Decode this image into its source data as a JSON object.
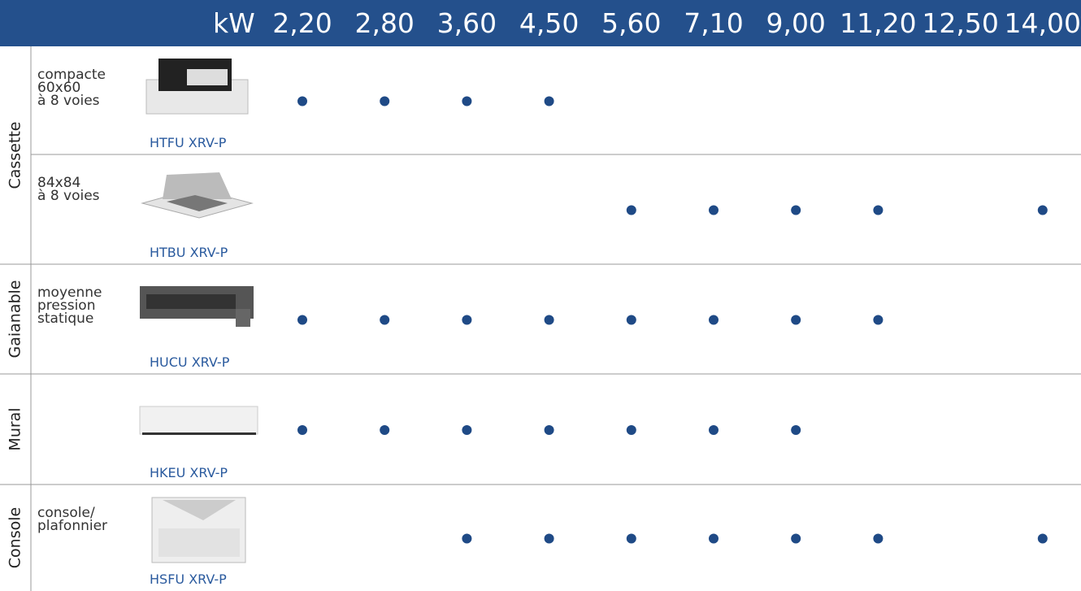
{
  "header": {
    "unit": "kW",
    "capacities": [
      "2,20",
      "2,80",
      "3,60",
      "4,50",
      "5,60",
      "7,10",
      "9,00",
      "11,20",
      "12,50",
      "14,00"
    ]
  },
  "groups": [
    {
      "category": "Cassette",
      "rows": [
        {
          "description": [
            "compacte",
            "60x60",
            "à 8 voies"
          ],
          "model": "HTFU XRV-P",
          "available": [
            true,
            true,
            true,
            true,
            false,
            false,
            false,
            false,
            false,
            false
          ]
        },
        {
          "description": [
            "84x84",
            "à 8 voies"
          ],
          "model": "HTBU XRV-P",
          "available": [
            false,
            false,
            false,
            false,
            true,
            true,
            true,
            true,
            false,
            true
          ]
        }
      ]
    },
    {
      "category": "Gaianable",
      "rows": [
        {
          "description": [
            "moyenne",
            "pression",
            "statique"
          ],
          "model": "HUCU XRV-P",
          "available": [
            true,
            true,
            true,
            true,
            true,
            true,
            true,
            true,
            false,
            false
          ]
        }
      ]
    },
    {
      "category": "Mural",
      "rows": [
        {
          "model": "HKEU XRV-P",
          "available": [
            true,
            true,
            true,
            true,
            true,
            true,
            true,
            false,
            false,
            false
          ]
        }
      ]
    },
    {
      "category": "Console",
      "rows": [
        {
          "description": [
            "console/",
            "plafonnier"
          ],
          "model": "HSFU XRV-P",
          "available": [
            false,
            false,
            true,
            true,
            true,
            true,
            true,
            true,
            false,
            true
          ]
        }
      ]
    }
  ]
}
